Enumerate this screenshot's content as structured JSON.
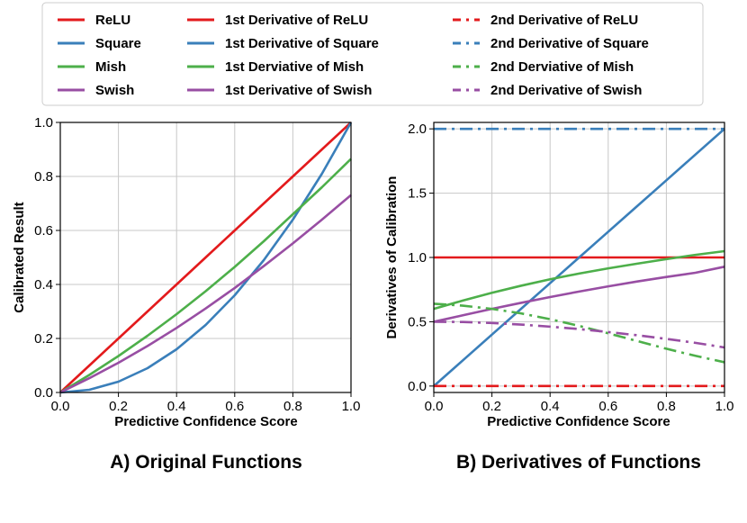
{
  "colors": {
    "relu": "#e31a1c",
    "square": "#3a7fba",
    "mish": "#4daf4a",
    "swish": "#984ea3",
    "grid": "#c8c8c8",
    "axis": "#000000"
  },
  "legend": {
    "columns": [
      [
        {
          "label": "ReLU",
          "color": "relu",
          "style": "solid"
        },
        {
          "label": "Square",
          "color": "square",
          "style": "solid"
        },
        {
          "label": "Mish",
          "color": "mish",
          "style": "solid"
        },
        {
          "label": "Swish",
          "color": "swish",
          "style": "solid"
        }
      ],
      [
        {
          "label": "1st Derivative of ReLU",
          "color": "relu",
          "style": "solid"
        },
        {
          "label": "1st Derivative of Square",
          "color": "square",
          "style": "solid"
        },
        {
          "label": "1st Derviative of Mish",
          "color": "mish",
          "style": "solid"
        },
        {
          "label": "1st Derivative of Swish",
          "color": "swish",
          "style": "solid"
        }
      ],
      [
        {
          "label": "2nd Derivative of ReLU",
          "color": "relu",
          "style": "dashdot"
        },
        {
          "label": "2nd Derivative of Square",
          "color": "square",
          "style": "dashdot"
        },
        {
          "label": "2nd Derviative of Mish",
          "color": "mish",
          "style": "dashdot"
        },
        {
          "label": "2nd Derivative of Swish",
          "color": "swish",
          "style": "dashdot"
        }
      ]
    ]
  },
  "chart_data": [
    {
      "type": "line",
      "caption": "A) Original Functions",
      "xlabel": "Predictive Confidence Score",
      "ylabel": "Calibrated Result",
      "xlim": [
        0,
        1
      ],
      "ylim": [
        0,
        1
      ],
      "xticks": [
        0.0,
        0.2,
        0.4,
        0.6,
        0.8,
        1.0
      ],
      "xtick_labels": [
        "0.0",
        "0.2",
        "0.4",
        "0.6",
        "0.8",
        "1.0"
      ],
      "yticks": [
        0.0,
        0.2,
        0.4,
        0.6,
        0.8,
        1.0
      ],
      "ytick_labels": [
        "0.0",
        "0.2",
        "0.4",
        "0.6",
        "0.8",
        "1.0"
      ],
      "grid": true,
      "x": [
        0.0,
        0.1,
        0.2,
        0.3,
        0.4,
        0.5,
        0.6,
        0.7,
        0.8,
        0.9,
        1.0
      ],
      "series": [
        {
          "name": "ReLU",
          "color": "relu",
          "style": "solid",
          "values": [
            0.0,
            0.1,
            0.2,
            0.3,
            0.4,
            0.5,
            0.6,
            0.7,
            0.8,
            0.9,
            1.0
          ]
        },
        {
          "name": "Square",
          "color": "square",
          "style": "solid",
          "values": [
            0.0,
            0.01,
            0.04,
            0.09,
            0.16,
            0.25,
            0.36,
            0.49,
            0.64,
            0.81,
            1.0
          ]
        },
        {
          "name": "Mish",
          "color": "mish",
          "style": "solid",
          "values": [
            0.0,
            0.065,
            0.135,
            0.21,
            0.29,
            0.375,
            0.465,
            0.56,
            0.66,
            0.76,
            0.865
          ]
        },
        {
          "name": "Swish",
          "color": "swish",
          "style": "solid",
          "values": [
            0.0,
            0.053,
            0.11,
            0.172,
            0.239,
            0.311,
            0.387,
            0.468,
            0.552,
            0.64,
            0.731
          ]
        }
      ]
    },
    {
      "type": "line",
      "caption": "B) Derivatives of Functions",
      "xlabel": "Predictive Confidence Score",
      "ylabel": "Derivatives of Calibration",
      "xlim": [
        0,
        1
      ],
      "ylim": [
        -0.05,
        2.05
      ],
      "xticks": [
        0.0,
        0.2,
        0.4,
        0.6,
        0.8,
        1.0
      ],
      "xtick_labels": [
        "0.0",
        "0.2",
        "0.4",
        "0.6",
        "0.8",
        "1.0"
      ],
      "yticks": [
        0.0,
        0.5,
        1.0,
        1.5,
        2.0
      ],
      "ytick_labels": [
        "0.0",
        "0.5",
        "1.0",
        "1.5",
        "2.0"
      ],
      "grid": true,
      "x": [
        0.0,
        0.1,
        0.2,
        0.3,
        0.4,
        0.5,
        0.6,
        0.7,
        0.8,
        0.9,
        1.0
      ],
      "series": [
        {
          "name": "1st Derivative of ReLU",
          "color": "relu",
          "style": "solid",
          "values": [
            1.0,
            1.0,
            1.0,
            1.0,
            1.0,
            1.0,
            1.0,
            1.0,
            1.0,
            1.0,
            1.0
          ]
        },
        {
          "name": "1st Derivative of Square",
          "color": "square",
          "style": "solid",
          "values": [
            0.0,
            0.2,
            0.4,
            0.6,
            0.8,
            1.0,
            1.2,
            1.4,
            1.6,
            1.8,
            2.0
          ]
        },
        {
          "name": "1st Derviative of Mish",
          "color": "mish",
          "style": "solid",
          "values": [
            0.6,
            0.665,
            0.725,
            0.78,
            0.83,
            0.875,
            0.915,
            0.952,
            0.987,
            1.02,
            1.049
          ]
        },
        {
          "name": "1st Derivative of Swish",
          "color": "swish",
          "style": "solid",
          "values": [
            0.5,
            0.55,
            0.6,
            0.647,
            0.692,
            0.735,
            0.775,
            0.813,
            0.848,
            0.881,
            0.928
          ]
        },
        {
          "name": "2nd Derivative of ReLU",
          "color": "relu",
          "style": "dashdot",
          "values": [
            0.0,
            0.0,
            0.0,
            0.0,
            0.0,
            0.0,
            0.0,
            0.0,
            0.0,
            0.0,
            0.0
          ]
        },
        {
          "name": "2nd Derivative of Square",
          "color": "square",
          "style": "dashdot",
          "values": [
            2.0,
            2.0,
            2.0,
            2.0,
            2.0,
            2.0,
            2.0,
            2.0,
            2.0,
            2.0,
            2.0
          ]
        },
        {
          "name": "2nd Derviative of Mish",
          "color": "mish",
          "style": "dashdot",
          "values": [
            0.64,
            0.625,
            0.6,
            0.565,
            0.52,
            0.468,
            0.41,
            0.35,
            0.29,
            0.235,
            0.185
          ]
        },
        {
          "name": "2nd Derivative of Swish",
          "color": "swish",
          "style": "dashdot",
          "values": [
            0.5,
            0.498,
            0.49,
            0.478,
            0.462,
            0.443,
            0.42,
            0.395,
            0.367,
            0.336,
            0.3
          ]
        }
      ]
    }
  ]
}
